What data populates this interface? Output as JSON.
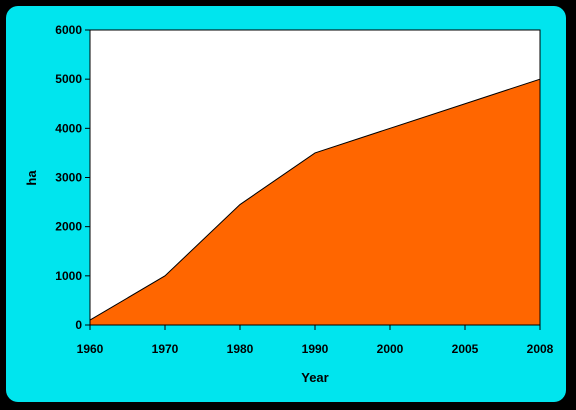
{
  "chart_data": {
    "type": "area",
    "categories": [
      "1960",
      "1970",
      "1980",
      "1990",
      "2000",
      "2005",
      "2008"
    ],
    "series": [
      {
        "values": [
          100,
          1000,
          2450,
          3500,
          4000,
          4500,
          5000
        ]
      }
    ],
    "xlabel": "Year",
    "ylabel": "ha",
    "ylim": [
      0,
      6000
    ],
    "yticks": [
      0,
      1000,
      2000,
      3000,
      4000,
      5000,
      6000
    ],
    "grid": false,
    "legend": "none"
  },
  "colors": {
    "frame": "#00e5ee",
    "background": "#000000",
    "plot_area": "#ffffff",
    "area_fill": "#ff6600"
  }
}
